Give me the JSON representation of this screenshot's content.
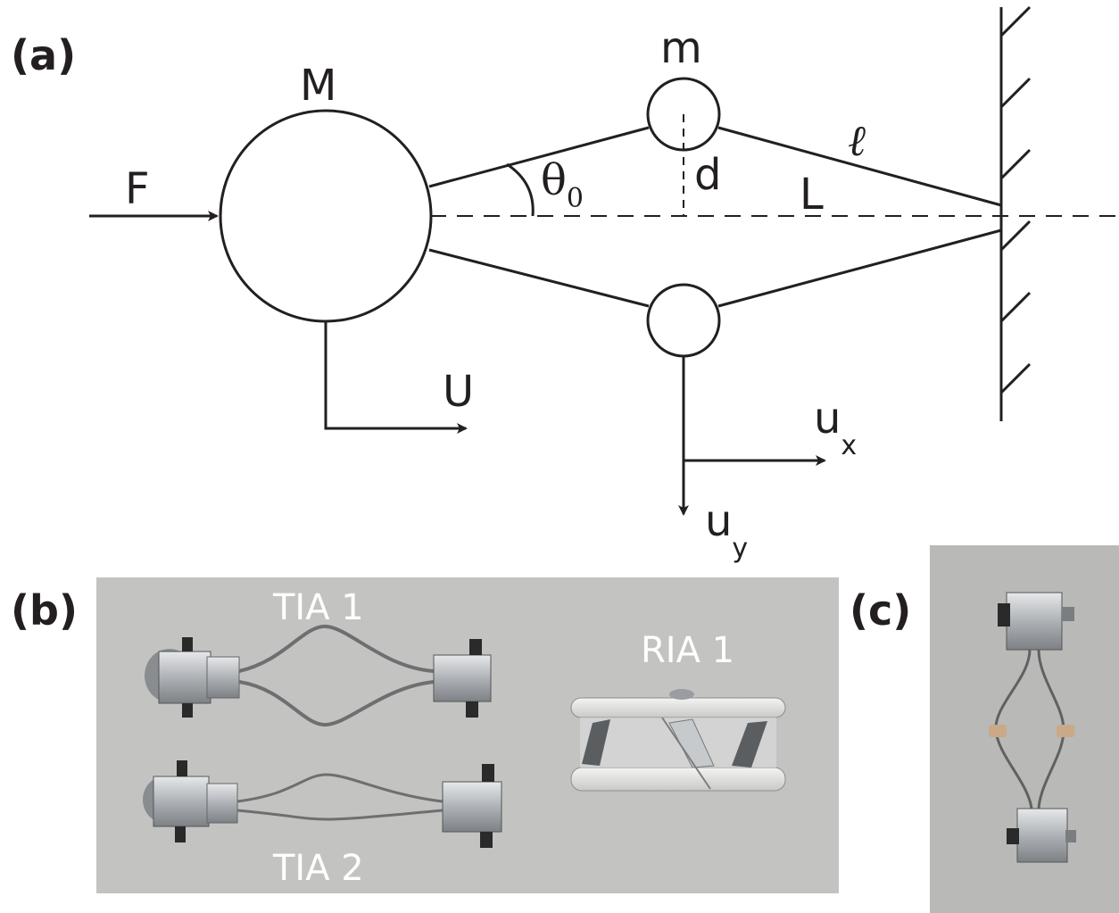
{
  "panels": {
    "a": "(a)",
    "b": "(b)",
    "c": "(c)"
  },
  "schematic": {
    "force": "F",
    "large_mass": "M",
    "small_mass": "m",
    "angle": "θ",
    "angle_sub": "0",
    "offset": "d",
    "half_length": "L",
    "link_length": "ℓ",
    "displacement_large": "U",
    "displacement_x": "u",
    "displacement_x_sub": "x",
    "displacement_y": "u",
    "displacement_y_sub": "y"
  },
  "photos": {
    "b_top_label": "TIA 1",
    "b_bottom_label": "TIA 2",
    "b_right_label": "RIA 1"
  },
  "colors": {
    "ink": "#231f20",
    "photo_background_b": "#c3c3c1",
    "photo_background_c": "#b9b9b7",
    "metal": "#b8bcc0"
  }
}
